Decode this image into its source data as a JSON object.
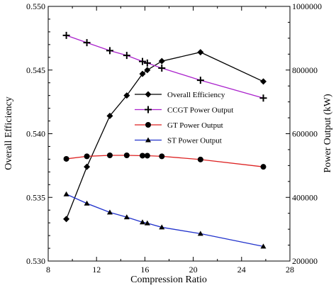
{
  "chart_data": {
    "type": "line",
    "xlabel": "Compression Ratio",
    "ylabel_left": "Overall Efficiency",
    "ylabel_right": "Power Output (kW)",
    "xlim": [
      8,
      28
    ],
    "ylim_left": [
      0.53,
      0.55
    ],
    "ylim_right": [
      200000,
      1000000
    ],
    "x_ticks": [
      "8",
      "12",
      "16",
      "20",
      "24",
      "28"
    ],
    "y_left_ticks": [
      "0.530",
      "0.535",
      "0.540",
      "0.545",
      "0.550"
    ],
    "y_right_ticks": [
      "200000",
      "400000",
      "600000",
      "800000",
      "1000000"
    ],
    "grid": false,
    "legend_position": "center-right",
    "series": [
      {
        "name": "Overall Efficiency",
        "axis": "left",
        "color": "#000000",
        "marker": "diamond",
        "x": [
          9.5,
          11.2,
          13.1,
          14.5,
          15.8,
          16.2,
          17.4,
          20.6,
          25.8
        ],
        "y": [
          0.5333,
          0.5374,
          0.5414,
          0.543,
          0.5447,
          0.545,
          0.5457,
          0.5464,
          0.5441
        ]
      },
      {
        "name": "CCGT Power Output",
        "axis": "right",
        "color": "#aa22cc",
        "marker": "plus",
        "x": [
          9.5,
          11.2,
          13.1,
          14.5,
          15.8,
          16.2,
          17.4,
          20.6,
          25.8
        ],
        "y": [
          909000,
          886000,
          861000,
          846000,
          827000,
          822000,
          806000,
          768000,
          712000
        ]
      },
      {
        "name": "GT Power Output",
        "axis": "right",
        "color": "#dd2222",
        "marker": "circle",
        "x": [
          9.5,
          11.2,
          13.1,
          14.5,
          15.8,
          16.2,
          17.4,
          20.6,
          25.8
        ],
        "y": [
          521000,
          529000,
          532000,
          532000,
          531000,
          531000,
          529000,
          519000,
          496000
        ]
      },
      {
        "name": "ST Power Output",
        "axis": "right",
        "color": "#2233cc",
        "marker": "triangle",
        "x": [
          9.5,
          11.2,
          13.1,
          14.5,
          15.8,
          16.2,
          17.4,
          20.6,
          25.8
        ],
        "y": [
          410000,
          381000,
          353000,
          338000,
          322000,
          319000,
          306000,
          286000,
          246000
        ]
      }
    ]
  }
}
